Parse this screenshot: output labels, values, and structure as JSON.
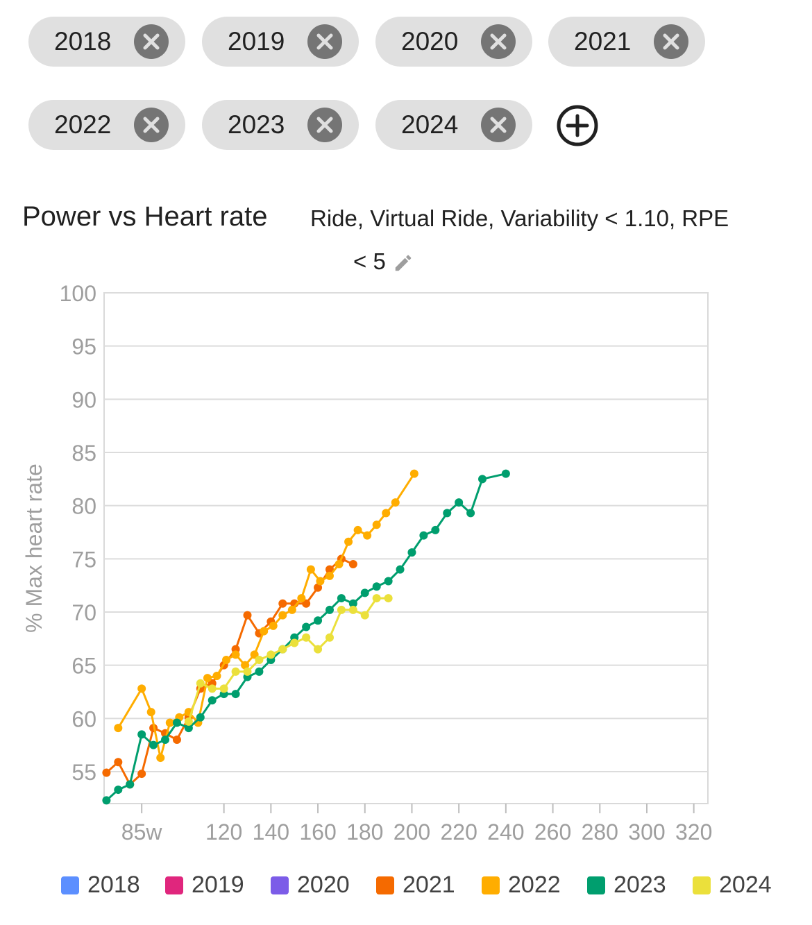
{
  "filters": {
    "chips": [
      {
        "label": "2018"
      },
      {
        "label": "2019"
      },
      {
        "label": "2020"
      },
      {
        "label": "2021"
      },
      {
        "label": "2022"
      },
      {
        "label": "2023"
      },
      {
        "label": "2024"
      }
    ],
    "add_icon": "add-circle-icon",
    "remove_icon": "close-circle-icon"
  },
  "header": {
    "title": "Power vs Heart rate",
    "filter_line1": "Ride, Virtual Ride, Variability < 1.10, RPE",
    "filter_line2": "< 5",
    "edit_icon": "pencil-icon"
  },
  "chart_data": {
    "type": "line",
    "title": "Power vs Heart rate",
    "ylabel": "% Max heart rate",
    "xlabel": "",
    "ylim": [
      52,
      100
    ],
    "xlim": [
      69,
      326
    ],
    "y_ticks": [
      "55",
      "60",
      "65",
      "70",
      "75",
      "80",
      "85",
      "90",
      "95",
      "100"
    ],
    "x_ticks": [
      "85w",
      "120",
      "140",
      "160",
      "180",
      "200",
      "220",
      "240",
      "260",
      "280",
      "300",
      "320"
    ],
    "grid": true,
    "legend_position": "bottom",
    "series": [
      {
        "name": "2018",
        "color": "#5c8fff",
        "points": []
      },
      {
        "name": "2019",
        "color": "#e0267d",
        "points": []
      },
      {
        "name": "2020",
        "color": "#7c5ce8",
        "points": []
      },
      {
        "name": "2021",
        "color": "#f56a00",
        "points": [
          [
            70,
            54.9
          ],
          [
            75,
            55.9
          ],
          [
            80,
            53.8
          ],
          [
            85,
            54.8
          ],
          [
            90,
            59.1
          ],
          [
            95,
            58.6
          ],
          [
            100,
            58.0
          ],
          [
            105,
            60.1
          ],
          [
            110,
            62.8
          ],
          [
            115,
            63.3
          ],
          [
            120,
            65.0
          ],
          [
            125,
            66.5
          ],
          [
            130,
            69.7
          ],
          [
            135,
            68.0
          ],
          [
            140,
            69.1
          ],
          [
            145,
            70.8
          ],
          [
            150,
            70.8
          ],
          [
            155,
            70.8
          ],
          [
            160,
            72.3
          ],
          [
            165,
            74.0
          ],
          [
            170,
            75.0
          ],
          [
            175,
            74.5
          ]
        ]
      },
      {
        "name": "2022",
        "color": "#ffad00",
        "points": [
          [
            75,
            59.1
          ],
          [
            85,
            62.8
          ],
          [
            89,
            60.6
          ],
          [
            93,
            56.3
          ],
          [
            97,
            59.6
          ],
          [
            101,
            60.1
          ],
          [
            105,
            60.6
          ],
          [
            109,
            59.6
          ],
          [
            113,
            63.8
          ],
          [
            117,
            64.0
          ],
          [
            121,
            65.5
          ],
          [
            125,
            66.0
          ],
          [
            129,
            65.0
          ],
          [
            133,
            66.0
          ],
          [
            137,
            68.2
          ],
          [
            141,
            68.7
          ],
          [
            145,
            69.7
          ],
          [
            149,
            70.2
          ],
          [
            153,
            71.3
          ],
          [
            157,
            74.0
          ],
          [
            161,
            72.9
          ],
          [
            165,
            73.4
          ],
          [
            169,
            74.5
          ],
          [
            173,
            76.6
          ],
          [
            177,
            77.7
          ],
          [
            181,
            77.2
          ],
          [
            185,
            78.2
          ],
          [
            189,
            79.3
          ],
          [
            193,
            80.3
          ],
          [
            201,
            83.0
          ]
        ]
      },
      {
        "name": "2023",
        "color": "#009e6e",
        "points": [
          [
            70,
            52.3
          ],
          [
            75,
            53.3
          ],
          [
            80,
            53.8
          ],
          [
            85,
            58.5
          ],
          [
            90,
            57.5
          ],
          [
            95,
            58.0
          ],
          [
            100,
            59.6
          ],
          [
            105,
            59.1
          ],
          [
            110,
            60.1
          ],
          [
            115,
            61.7
          ],
          [
            120,
            62.3
          ],
          [
            125,
            62.3
          ],
          [
            130,
            63.9
          ],
          [
            135,
            64.4
          ],
          [
            140,
            65.5
          ],
          [
            145,
            66.5
          ],
          [
            150,
            67.6
          ],
          [
            155,
            68.6
          ],
          [
            160,
            69.2
          ],
          [
            165,
            70.2
          ],
          [
            170,
            71.3
          ],
          [
            175,
            70.8
          ],
          [
            180,
            71.8
          ],
          [
            185,
            72.4
          ],
          [
            190,
            72.9
          ],
          [
            195,
            74.0
          ],
          [
            200,
            75.6
          ],
          [
            205,
            77.2
          ],
          [
            210,
            77.7
          ],
          [
            215,
            79.3
          ],
          [
            220,
            80.3
          ],
          [
            225,
            79.3
          ],
          [
            230,
            82.5
          ],
          [
            240,
            83.0
          ]
        ]
      },
      {
        "name": "2024",
        "color": "#ebe03b",
        "points": [
          [
            105,
            59.7
          ],
          [
            110,
            63.3
          ],
          [
            115,
            62.8
          ],
          [
            120,
            62.8
          ],
          [
            125,
            64.4
          ],
          [
            130,
            64.4
          ],
          [
            135,
            65.5
          ],
          [
            140,
            66.0
          ],
          [
            145,
            66.5
          ],
          [
            150,
            67.1
          ],
          [
            155,
            67.6
          ],
          [
            160,
            66.5
          ],
          [
            165,
            67.6
          ],
          [
            170,
            70.2
          ],
          [
            175,
            70.2
          ],
          [
            180,
            69.7
          ],
          [
            185,
            71.3
          ],
          [
            190,
            71.3
          ]
        ]
      }
    ]
  }
}
